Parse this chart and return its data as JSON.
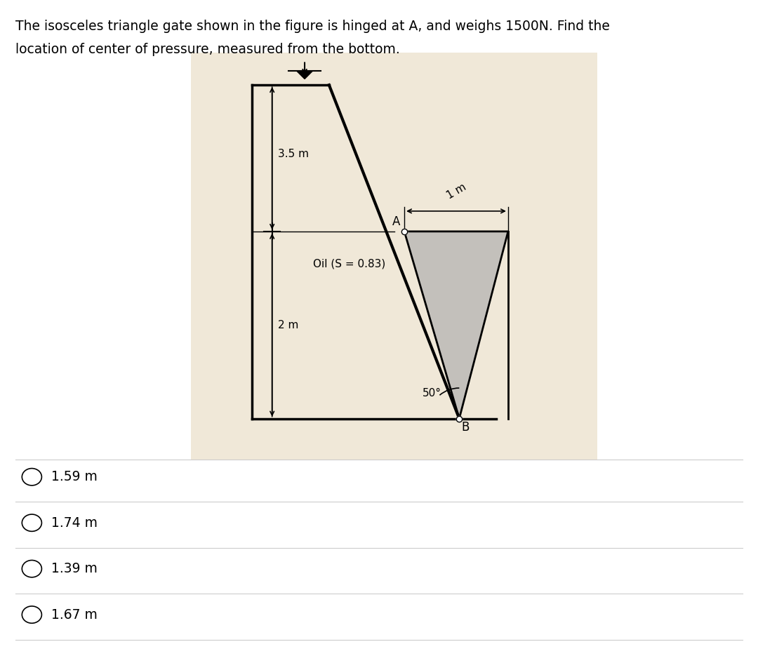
{
  "title_line1": "The isosceles triangle gate shown in the figure is hinged at A, and weighs 1500N. Find the",
  "title_line2": "location of center of pressure, measured from the bottom.",
  "options": [
    "1.59 m",
    "1.74 m",
    "1.39 m",
    "1.67 m"
  ],
  "bg_color": "#f0e8d8",
  "fig_bg": "#ffffff",
  "label_35m": "3.5 m",
  "label_2m": "2 m",
  "label_1m": "1 m",
  "label_oil": "Oil (S = 0.83)",
  "label_50": "50°",
  "label_A": "A",
  "label_B": "B"
}
